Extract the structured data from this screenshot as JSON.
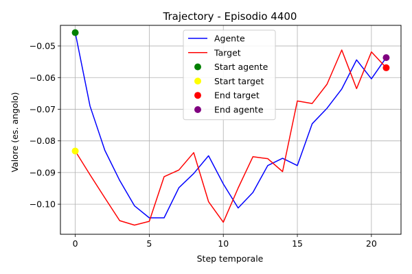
{
  "chart_data": {
    "type": "line",
    "title": "Trajectory - Episodio 4400",
    "xlabel": "Step temporale",
    "ylabel": "Valore (es. angolo)",
    "xlim": [
      -1,
      22
    ],
    "ylim": [
      -0.1095,
      -0.0435
    ],
    "x_ticks": [
      0,
      5,
      10,
      15,
      20
    ],
    "y_ticks": [
      -0.1,
      -0.09,
      -0.08,
      -0.07,
      -0.06,
      -0.05
    ],
    "x_tick_labels": [
      "0",
      "5",
      "10",
      "15",
      "20"
    ],
    "y_tick_labels": [
      "−0.10",
      "−0.09",
      "−0.08",
      "−0.07",
      "−0.06",
      "−0.05"
    ],
    "grid": true,
    "legend_position": "top-center",
    "x": [
      0,
      1,
      2,
      3,
      4,
      5,
      6,
      7,
      8,
      9,
      10,
      11,
      12,
      13,
      14,
      15,
      16,
      17,
      18,
      19,
      20,
      21
    ],
    "series": [
      {
        "name": "Agente",
        "color": "#0000ff",
        "values": [
          -0.0458,
          -0.069,
          -0.083,
          -0.0925,
          -0.1005,
          -0.1043,
          -0.1043,
          -0.0948,
          -0.0903,
          -0.0847,
          -0.0936,
          -0.1012,
          -0.0963,
          -0.0878,
          -0.0855,
          -0.0878,
          -0.0746,
          -0.0697,
          -0.0636,
          -0.0544,
          -0.0604,
          -0.0537
        ]
      },
      {
        "name": "Target",
        "color": "#ff0000",
        "values": [
          -0.0832,
          -0.0907,
          -0.098,
          -0.1052,
          -0.1066,
          -0.1054,
          -0.0913,
          -0.0892,
          -0.0837,
          -0.0992,
          -0.1057,
          -0.0949,
          -0.085,
          -0.0856,
          -0.0897,
          -0.0674,
          -0.0682,
          -0.0621,
          -0.0513,
          -0.0635,
          -0.0519,
          -0.0569
        ]
      }
    ],
    "markers": [
      {
        "name": "Start agente",
        "color": "#008000",
        "x": 0,
        "y": -0.0458
      },
      {
        "name": "Start target",
        "color": "#ffff00",
        "x": 0,
        "y": -0.0832
      },
      {
        "name": "End target",
        "color": "#ff0000",
        "x": 21,
        "y": -0.0569
      },
      {
        "name": "End agente",
        "color": "#800080",
        "x": 21,
        "y": -0.0537
      }
    ],
    "legend": [
      {
        "label": "Agente",
        "kind": "line",
        "color": "#0000ff"
      },
      {
        "label": "Target",
        "kind": "line",
        "color": "#ff0000"
      },
      {
        "label": "Start agente",
        "kind": "marker",
        "color": "#008000"
      },
      {
        "label": "Start target",
        "kind": "marker",
        "color": "#ffff00"
      },
      {
        "label": "End target",
        "kind": "marker",
        "color": "#ff0000"
      },
      {
        "label": "End agente",
        "kind": "marker",
        "color": "#800080"
      }
    ]
  }
}
